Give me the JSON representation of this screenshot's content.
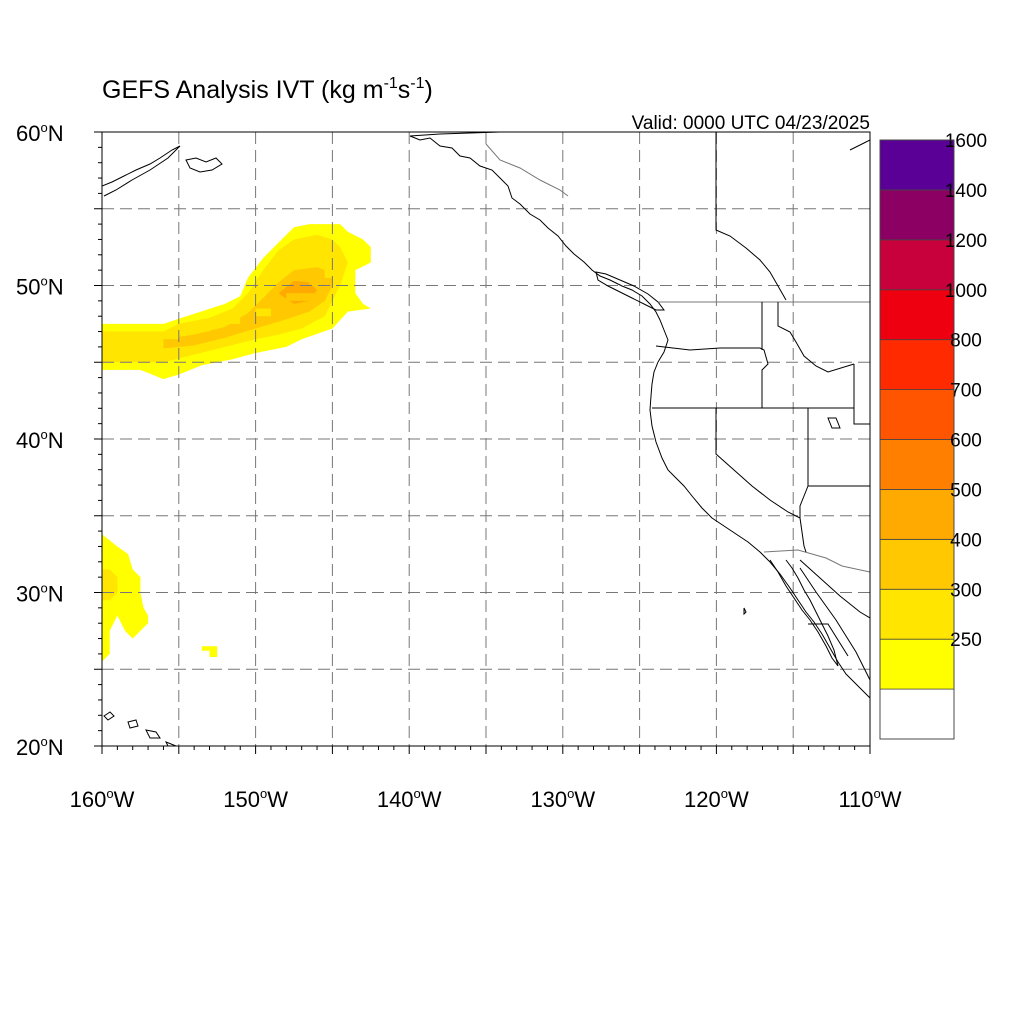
{
  "title": {
    "main": "GEFS Analysis IVT (kg m",
    "sup1": "-1",
    "mid": "s",
    "sup2": "-1",
    "close": ")"
  },
  "valid_label": "Valid: 0000 UTC 04/23/2025",
  "map": {
    "lon_range": [
      -160,
      -110
    ],
    "lat_range": [
      20,
      60
    ],
    "lat_labels": [
      {
        "lat": 60,
        "text": "60",
        "hem": "N"
      },
      {
        "lat": 50,
        "text": "50",
        "hem": "N"
      },
      {
        "lat": 40,
        "text": "40",
        "hem": "N"
      },
      {
        "lat": 30,
        "text": "30",
        "hem": "N"
      },
      {
        "lat": 20,
        "text": "20",
        "hem": "N"
      }
    ],
    "lon_labels": [
      {
        "lon": -160,
        "text": "160",
        "hem": "W"
      },
      {
        "lon": -150,
        "text": "150",
        "hem": "W"
      },
      {
        "lon": -140,
        "text": "140",
        "hem": "W"
      },
      {
        "lon": -130,
        "text": "130",
        "hem": "W"
      },
      {
        "lon": -120,
        "text": "120",
        "hem": "W"
      },
      {
        "lon": -110,
        "text": "110",
        "hem": "W"
      }
    ],
    "grid_step_deg": 5
  },
  "colorbar": {
    "bins": [
      {
        "label": "",
        "color": "#ffffff"
      },
      {
        "label": "250",
        "color": "#ffff00"
      },
      {
        "label": "300",
        "color": "#ffe500"
      },
      {
        "label": "400",
        "color": "#ffc800"
      },
      {
        "label": "500",
        "color": "#ffaa00"
      },
      {
        "label": "600",
        "color": "#ff8000"
      },
      {
        "label": "700",
        "color": "#ff5500"
      },
      {
        "label": "800",
        "color": "#ff2a00"
      },
      {
        "label": "1000",
        "color": "#ee0011"
      },
      {
        "label": "1200",
        "color": "#c8003c"
      },
      {
        "label": "1400",
        "color": "#8c0064"
      },
      {
        "label": "1600",
        "color": "#5a0096"
      }
    ]
  },
  "ivt_field": {
    "units": "kg m-1 s-1",
    "cell_deg": 0.5,
    "cells": [
      {
        "lon": -160,
        "lat": 46.5,
        "level": 2
      },
      {
        "lon": -158,
        "lat": 46.5,
        "level": 2
      },
      {
        "lon": -156,
        "lat": 46.5,
        "level": 2
      },
      {
        "lon": -154,
        "lat": 47,
        "level": 2
      },
      {
        "lon": -152,
        "lat": 47.5,
        "level": 2
      },
      {
        "lon": -150,
        "lat": 48,
        "level": 2
      },
      {
        "lon": -148,
        "lat": 49,
        "level": 3
      },
      {
        "lon": -146.5,
        "lat": 50,
        "level": 3
      },
      {
        "lon": -147,
        "lat": 49,
        "level": 3
      },
      {
        "lon": -145.5,
        "lat": 50.5,
        "level": 2
      }
    ],
    "blobs": [
      {
        "level": 1,
        "poly": [
          [
            -160,
            47.5
          ],
          [
            -158,
            47.5
          ],
          [
            -156,
            47.5
          ],
          [
            -154.5,
            48
          ],
          [
            -152,
            48.8
          ],
          [
            -151,
            49.3
          ],
          [
            -150.5,
            50.5
          ],
          [
            -149.5,
            51.8
          ],
          [
            -148.5,
            52.8
          ],
          [
            -147.5,
            53.8
          ],
          [
            -146.5,
            54
          ],
          [
            -144.5,
            54
          ],
          [
            -144,
            53.5
          ],
          [
            -143,
            53
          ],
          [
            -142.5,
            52.5
          ],
          [
            -142.5,
            51.5
          ],
          [
            -143.5,
            51
          ],
          [
            -143.5,
            50.5
          ],
          [
            -143.5,
            49.5
          ],
          [
            -143,
            48.8
          ],
          [
            -142.5,
            48.5
          ],
          [
            -144,
            48.3
          ],
          [
            -145,
            47.2
          ],
          [
            -147,
            46.5
          ],
          [
            -148,
            46
          ],
          [
            -150,
            45.6
          ],
          [
            -151.5,
            45.2
          ],
          [
            -153.5,
            44.8
          ],
          [
            -155,
            44.2
          ],
          [
            -156,
            43.9
          ],
          [
            -157.5,
            44.5
          ],
          [
            -160,
            44.5
          ]
        ]
      },
      {
        "level": 2,
        "poly": [
          [
            -160,
            47
          ],
          [
            -158,
            47
          ],
          [
            -156,
            47
          ],
          [
            -155,
            47.5
          ],
          [
            -153,
            47.9
          ],
          [
            -151.5,
            48.5
          ],
          [
            -150.5,
            49.5
          ],
          [
            -149.5,
            51
          ],
          [
            -148.5,
            52.3
          ],
          [
            -147.5,
            53
          ],
          [
            -146,
            53.3
          ],
          [
            -145,
            53
          ],
          [
            -144.5,
            52.5
          ],
          [
            -144,
            51.5
          ],
          [
            -144.5,
            50
          ],
          [
            -145,
            49
          ],
          [
            -145.5,
            48
          ],
          [
            -147,
            47.2
          ],
          [
            -148.5,
            46.8
          ],
          [
            -150,
            46.5
          ],
          [
            -152,
            46
          ],
          [
            -154,
            45.5
          ],
          [
            -156,
            45
          ],
          [
            -158,
            45
          ],
          [
            -160,
            45
          ]
        ]
      },
      {
        "level": 3,
        "poly": [
          [
            -156,
            46.5
          ],
          [
            -154,
            46.8
          ],
          [
            -152,
            47.3
          ],
          [
            -150.5,
            48.2
          ],
          [
            -149.5,
            49.2
          ],
          [
            -148.5,
            50.2
          ],
          [
            -147.5,
            51
          ],
          [
            -146,
            51.2
          ],
          [
            -145,
            50.8
          ],
          [
            -145,
            50
          ],
          [
            -145.5,
            49
          ],
          [
            -146.5,
            48.3
          ],
          [
            -148,
            47.8
          ],
          [
            -150,
            47.2
          ],
          [
            -152,
            46.6
          ],
          [
            -154,
            46.1
          ],
          [
            -156,
            45.9
          ]
        ]
      },
      {
        "level": 4,
        "poly": [
          [
            -148.5,
            49.5
          ],
          [
            -147.5,
            50.3
          ],
          [
            -146.5,
            50.2
          ],
          [
            -146,
            49.7
          ],
          [
            -146.5,
            49
          ],
          [
            -147.5,
            48.8
          ]
        ]
      },
      {
        "level": 1,
        "poly": [
          [
            -160,
            33.8
          ],
          [
            -159,
            33
          ],
          [
            -158.3,
            32.5
          ],
          [
            -158,
            31.5
          ],
          [
            -157.5,
            31
          ],
          [
            -157.5,
            30
          ],
          [
            -157.3,
            29
          ],
          [
            -157,
            28.5
          ],
          [
            -157,
            28
          ],
          [
            -157.5,
            27.5
          ],
          [
            -158,
            27
          ],
          [
            -158.5,
            27.5
          ],
          [
            -159,
            28.5
          ],
          [
            -159.5,
            27.5
          ],
          [
            -159.5,
            26
          ],
          [
            -160,
            25.5
          ]
        ]
      },
      {
        "level": 2,
        "poly": [
          [
            -160,
            31.5
          ],
          [
            -159.5,
            31.5
          ],
          [
            -159,
            31
          ],
          [
            -159,
            30
          ],
          [
            -159.5,
            29.5
          ],
          [
            -160,
            29.5
          ]
        ]
      },
      {
        "level": 1,
        "poly": [
          [
            -153.5,
            26.5
          ],
          [
            -152.5,
            26.5
          ],
          [
            -152.5,
            25.8
          ],
          [
            -153,
            25.8
          ],
          [
            -153,
            26.2
          ],
          [
            -153.5,
            26.2
          ]
        ]
      }
    ]
  }
}
